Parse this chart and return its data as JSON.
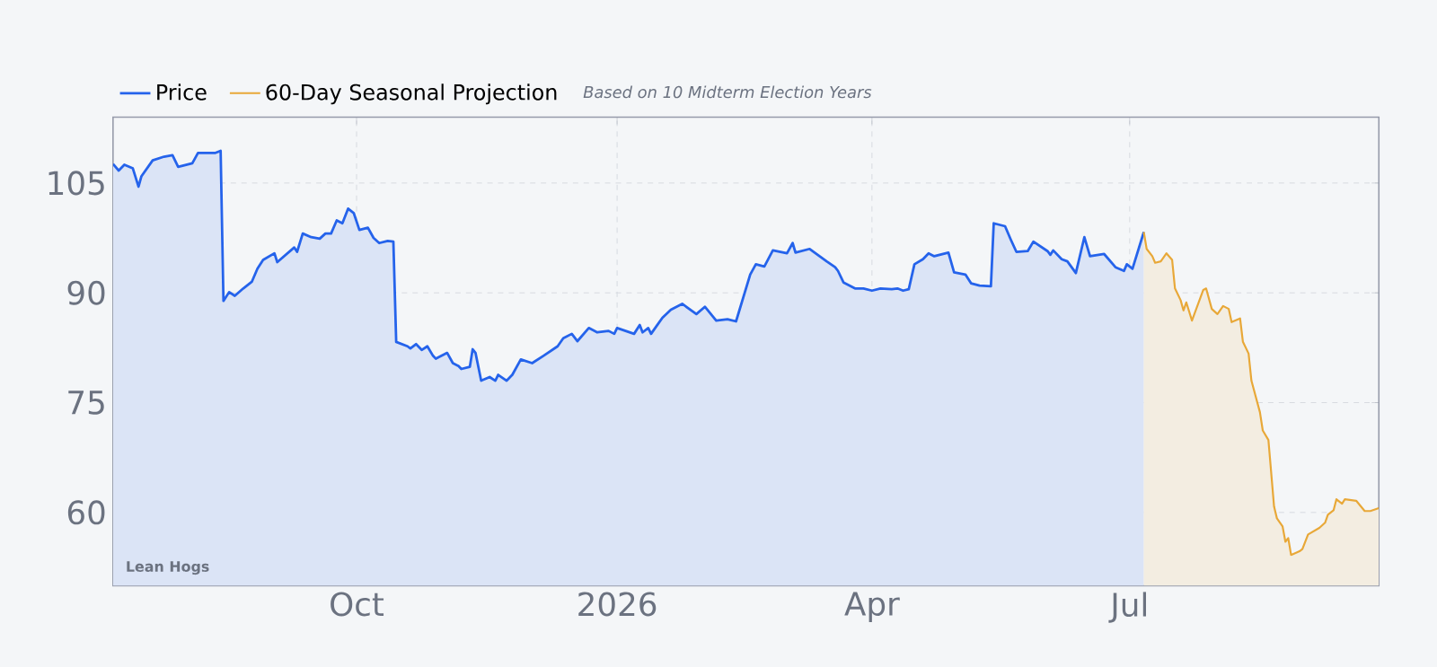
{
  "chart_data": {
    "type": "area",
    "annotations": [
      "Based on 10 Midterm Election Years",
      "Lean Hogs"
    ],
    "xlim": [
      "2025-07-07",
      "2026-09-27"
    ],
    "xticks": [
      {
        "value": "2025-10-01",
        "label": "Oct"
      },
      {
        "value": "2026-01-01",
        "label": "2026"
      },
      {
        "value": "2026-04-01",
        "label": "Apr"
      },
      {
        "value": "2026-07-01",
        "label": "Jul"
      }
    ],
    "ylim": [
      50,
      114
    ],
    "yticks": [
      60,
      75,
      90,
      105
    ],
    "grid": true,
    "legend": "top left",
    "series": [
      {
        "name": "Price",
        "color": "#2563eb",
        "x": [
          "2025-07-07",
          "2025-07-09",
          "2025-07-11",
          "2025-07-14",
          "2025-07-16",
          "2025-07-17",
          "2025-07-21",
          "2025-07-25",
          "2025-07-28",
          "2025-07-30",
          "2025-08-04",
          "2025-08-06",
          "2025-08-12",
          "2025-08-14",
          "2025-08-15",
          "2025-08-17",
          "2025-08-19",
          "2025-08-22",
          "2025-08-25",
          "2025-08-27",
          "2025-08-29",
          "2025-09-02",
          "2025-09-03",
          "2025-09-09",
          "2025-09-10",
          "2025-09-12",
          "2025-09-15",
          "2025-09-18",
          "2025-09-20",
          "2025-09-22",
          "2025-09-24",
          "2025-09-26",
          "2025-09-28",
          "2025-09-30",
          "2025-10-02",
          "2025-10-05",
          "2025-10-07",
          "2025-10-09",
          "2025-10-12",
          "2025-10-14",
          "2025-10-15",
          "2025-10-19",
          "2025-10-20",
          "2025-10-22",
          "2025-10-24",
          "2025-10-26",
          "2025-10-28",
          "2025-10-29",
          "2025-11-02",
          "2025-11-04",
          "2025-11-06",
          "2025-11-07",
          "2025-11-10",
          "2025-11-11",
          "2025-11-12",
          "2025-11-14",
          "2025-11-17",
          "2025-11-19",
          "2025-11-20",
          "2025-11-23",
          "2025-11-25",
          "2025-11-28",
          "2025-12-02",
          "2025-12-06",
          "2025-12-11",
          "2025-12-13",
          "2025-12-16",
          "2025-12-18",
          "2025-12-22",
          "2025-12-25",
          "2025-12-29",
          "2025-12-31",
          "2026-01-01",
          "2026-01-07",
          "2026-01-09",
          "2026-01-10",
          "2026-01-12",
          "2026-01-13",
          "2026-01-15",
          "2026-01-17",
          "2026-01-20",
          "2026-01-24",
          "2026-01-29",
          "2026-02-01",
          "2026-02-05",
          "2026-02-09",
          "2026-02-12",
          "2026-02-17",
          "2026-02-19",
          "2026-02-22",
          "2026-02-25",
          "2026-03-02",
          "2026-03-04",
          "2026-03-05",
          "2026-03-10",
          "2026-03-16",
          "2026-03-19",
          "2026-03-20",
          "2026-03-22",
          "2026-03-26",
          "2026-03-29",
          "2026-04-01",
          "2026-04-04",
          "2026-04-08",
          "2026-04-10",
          "2026-04-12",
          "2026-04-14",
          "2026-04-16",
          "2026-04-19",
          "2026-04-21",
          "2026-04-23",
          "2026-04-28",
          "2026-04-30",
          "2026-05-04",
          "2026-05-06",
          "2026-05-09",
          "2026-05-13",
          "2026-05-14",
          "2026-05-18",
          "2026-05-20",
          "2026-05-22",
          "2026-05-26",
          "2026-05-28",
          "2026-06-02",
          "2026-06-03",
          "2026-06-04",
          "2026-06-07",
          "2026-06-09",
          "2026-06-12",
          "2026-06-15",
          "2026-06-17",
          "2026-06-22",
          "2026-06-26",
          "2026-06-29",
          "2026-06-30",
          "2026-07-02",
          "2026-07-06"
        ],
        "values": [
          107.6,
          106.7,
          107.5,
          107.0,
          104.5,
          105.9,
          108.1,
          108.6,
          108.8,
          107.2,
          107.7,
          109.1,
          109.1,
          109.4,
          88.9,
          90.1,
          89.6,
          90.6,
          91.5,
          93.3,
          94.5,
          95.4,
          94.2,
          96.2,
          95.6,
          98.1,
          97.6,
          97.4,
          98.1,
          98.1,
          99.9,
          99.5,
          101.5,
          100.9,
          98.6,
          98.9,
          97.5,
          96.8,
          97.1,
          97.0,
          83.3,
          82.7,
          82.4,
          83.0,
          82.2,
          82.7,
          81.4,
          81.0,
          81.8,
          80.4,
          80.0,
          79.6,
          79.9,
          82.3,
          81.8,
          78.0,
          78.5,
          78.0,
          78.8,
          78.0,
          78.8,
          80.9,
          80.4,
          81.4,
          82.7,
          83.8,
          84.4,
          83.4,
          85.2,
          84.6,
          84.8,
          84.4,
          85.2,
          84.4,
          85.6,
          84.6,
          85.2,
          84.4,
          85.5,
          86.6,
          87.7,
          88.5,
          87.1,
          88.1,
          86.2,
          86.4,
          86.1,
          92.5,
          93.9,
          93.6,
          95.8,
          95.4,
          96.8,
          95.5,
          96.0,
          94.3,
          93.5,
          93.0,
          91.4,
          90.6,
          90.6,
          90.3,
          90.6,
          90.5,
          90.6,
          90.3,
          90.5,
          93.9,
          94.6,
          95.4,
          95.0,
          95.5,
          92.8,
          92.5,
          91.3,
          91.0,
          90.9,
          99.5,
          99.1,
          97.3,
          95.6,
          95.7,
          97.0,
          95.7,
          95.2,
          95.8,
          94.6,
          94.3,
          92.7,
          97.6,
          95.0,
          95.3,
          93.5,
          93.0,
          93.9,
          93.3,
          98.3
        ]
      },
      {
        "name": "60-Day Seasonal Projection",
        "color": "#e8a838",
        "x": [
          "2026-07-06",
          "2026-07-07",
          "2026-07-09",
          "2026-07-10",
          "2026-07-12",
          "2026-07-14",
          "2026-07-16",
          "2026-07-17",
          "2026-07-19",
          "2026-07-20",
          "2026-07-21",
          "2026-07-23",
          "2026-07-27",
          "2026-07-28",
          "2026-07-30",
          "2026-08-01",
          "2026-08-03",
          "2026-08-05",
          "2026-08-06",
          "2026-08-09",
          "2026-08-10",
          "2026-08-12",
          "2026-08-13",
          "2026-08-16",
          "2026-08-17",
          "2026-08-19",
          "2026-08-21",
          "2026-08-22",
          "2026-08-24",
          "2026-08-25",
          "2026-08-26",
          "2026-08-27",
          "2026-08-30",
          "2026-08-31",
          "2026-09-02",
          "2026-09-06",
          "2026-09-08",
          "2026-09-09",
          "2026-09-11",
          "2026-09-12",
          "2026-09-14",
          "2026-09-15",
          "2026-09-19",
          "2026-09-22",
          "2026-09-24",
          "2026-09-27"
        ],
        "values": [
          98.3,
          96.0,
          95.0,
          94.1,
          94.3,
          95.4,
          94.5,
          90.6,
          89.0,
          87.6,
          88.7,
          86.2,
          90.4,
          90.6,
          87.8,
          87.1,
          88.2,
          87.8,
          86.0,
          86.5,
          83.3,
          81.7,
          78.0,
          73.7,
          71.2,
          69.9,
          60.8,
          59.2,
          58.1,
          56.0,
          56.5,
          54.2,
          54.7,
          55.0,
          57.0,
          57.9,
          58.6,
          59.7,
          60.3,
          61.8,
          61.2,
          61.8,
          61.6,
          60.2,
          60.2,
          60.6
        ]
      }
    ]
  }
}
